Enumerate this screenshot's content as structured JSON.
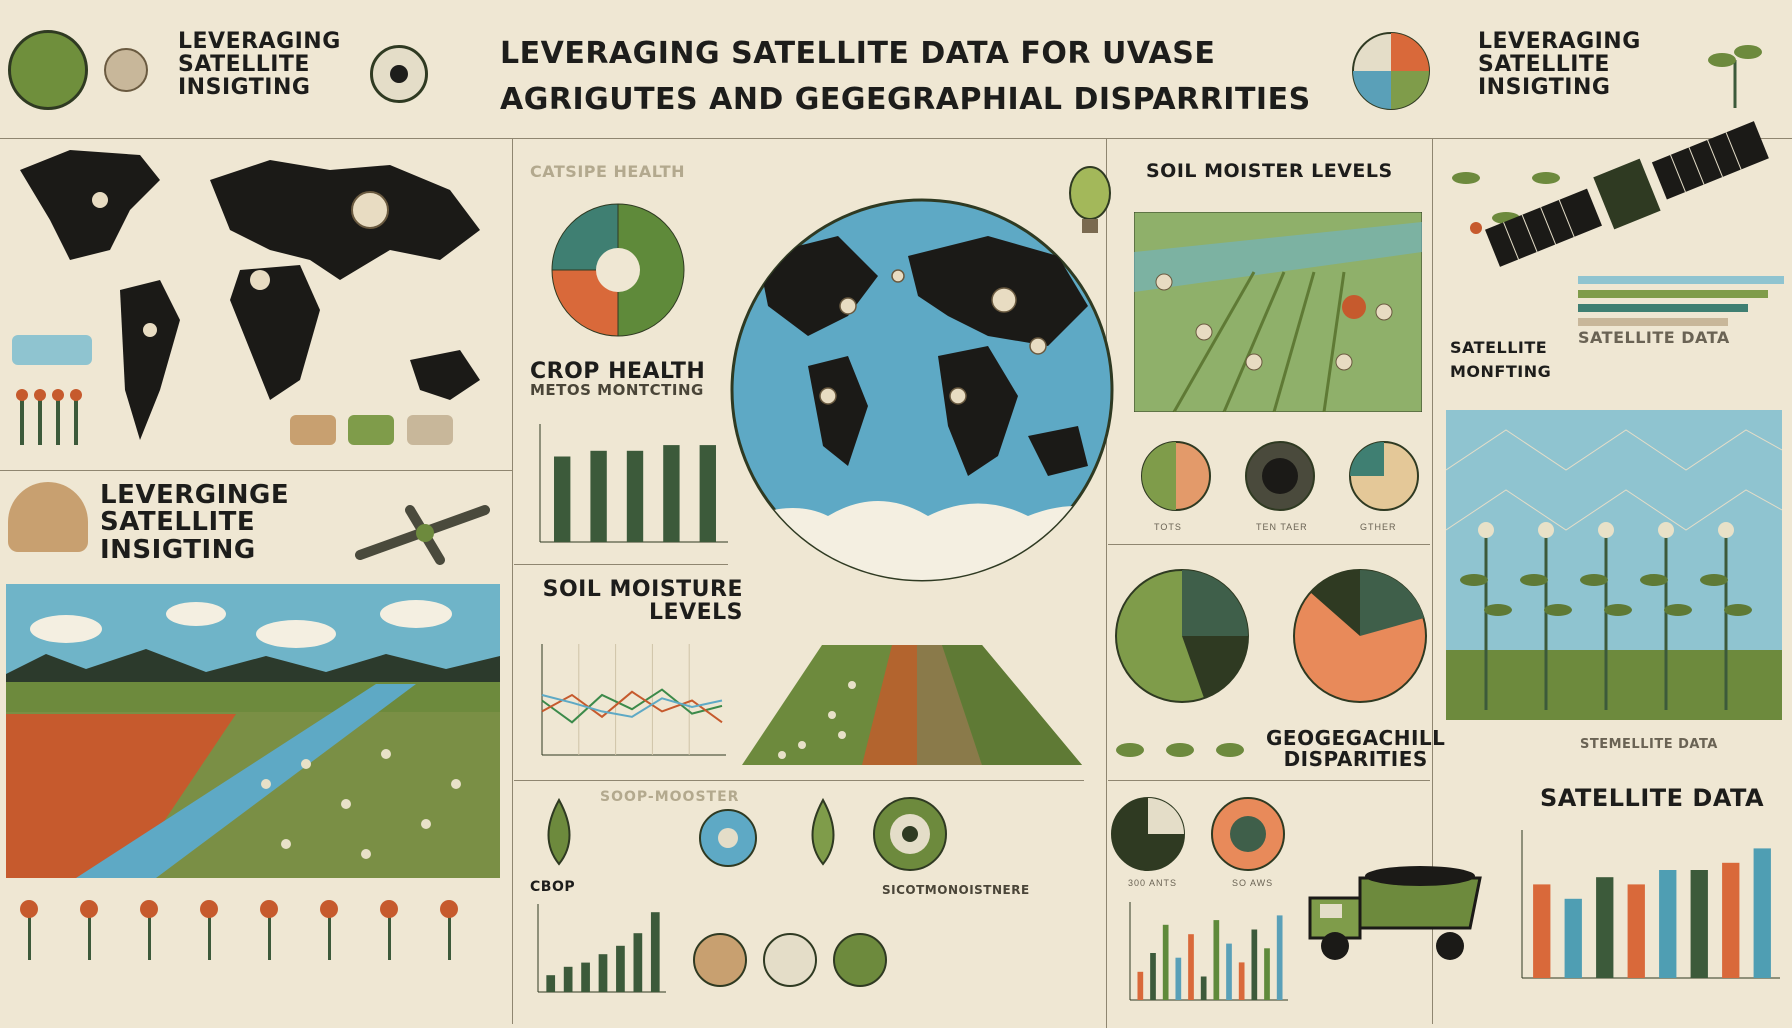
{
  "header": {
    "title_line1": "LEVERAGING SATELLITE DATA FOR UVASE",
    "title_line2": "AGRIGUTES AND GEGEGRAPHIAL DISPARRITIES",
    "left_title_l1": "LEVERAGING",
    "left_title_l2": "SATELLITE",
    "left_title_l3": "INSIGTING",
    "right_title_l1": "LEVERAGING",
    "right_title_l2": "SATELLITE",
    "right_title_l3": "INSIGTING"
  },
  "left_panel": {
    "title_l1": "LEVERGINGE",
    "title_l2": "SATELLITE",
    "title_l3": "INSIGTING"
  },
  "center": {
    "crop_health_faded": "CATSIPE HEALTH",
    "crop_health_title": "CROP HEALTH",
    "crop_health_sub": "METOS MONTCTING",
    "soil_moisture_title_l1": "SOIL MOISTURE",
    "soil_moisture_title_l2": "LEVELS",
    "bottom_left_label": "CBOP",
    "bottom_faded": "SOOP-MOOSTER",
    "bottom_mid_label": "SICOTMONOISTNERE"
  },
  "right_mid": {
    "soil_title": "SOIL MOISTER LEVELS",
    "pies_small_labels": [
      "TOTS",
      "TEN TAER",
      "GTHER"
    ],
    "geo_l1": "GEOGEGACHILL",
    "geo_l2": "DISPARITIES",
    "pie_labels_bottom": [
      "300 ANTS",
      "SO AWS"
    ]
  },
  "right_col": {
    "sat_label_l1": "SATELLITE",
    "sat_label_l2": "MONFTING",
    "sat_data_faded": "SATELLITE DATA",
    "sat_data_title": "SATELLITE DATA",
    "sat_data_faded2": "STEMELLITE DATA"
  },
  "chart_data": [
    {
      "type": "pie",
      "values": [
        50,
        25,
        25
      ],
      "colors": [
        "#5f8a3a",
        "#d9693a",
        "#3f7f72"
      ]
    },
    {
      "type": "bar",
      "values": [
        75,
        80,
        80,
        85,
        85
      ],
      "colors": [
        "#3c5a3a",
        "#3c5a3a",
        "#3c5a3a",
        "#3c5a3a",
        "#3c5a3a"
      ]
    },
    {
      "type": "line",
      "series": [
        {
          "values": [
            50,
            30,
            55,
            42,
            60,
            38,
            45
          ]
        },
        {
          "values": [
            40,
            55,
            35,
            58,
            40,
            50,
            30
          ]
        },
        {
          "values": [
            55,
            48,
            40,
            35,
            52,
            44,
            50
          ]
        }
      ]
    },
    {
      "type": "bar",
      "values": [
        20,
        30,
        35,
        45,
        55,
        70,
        95
      ],
      "colors": [
        "#3c5a3a"
      ]
    },
    {
      "type": "bar",
      "values": [
        30,
        50,
        80,
        45,
        70,
        25,
        85,
        60,
        40,
        75,
        55,
        90
      ],
      "colors": [
        "#d9693a",
        "#3c5a3a",
        "#5f8a3a",
        "#5aa0b8"
      ]
    },
    {
      "type": "bar",
      "values": [
        65,
        55,
        70,
        65,
        75,
        75,
        80,
        90
      ],
      "colors": [
        "#d9693a",
        "#4f9eb3",
        "#3c5a3a"
      ]
    }
  ],
  "colors": {
    "background": "#efe7d3",
    "ocean": "#5ea9c5",
    "land": "#1b1a17",
    "field_green": "#6d8a3d",
    "crop_orange": "#c65a2d",
    "accent_teal": "#3f7f72"
  }
}
